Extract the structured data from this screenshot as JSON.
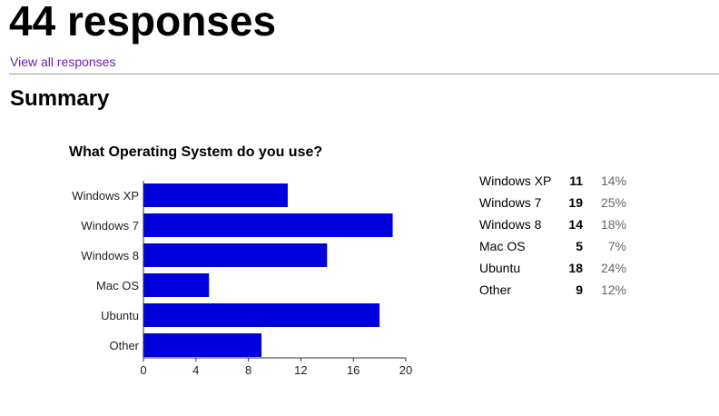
{
  "header": {
    "responses_title": "44 responses",
    "view_all_link": "View all responses",
    "summary_title": "Summary"
  },
  "question": {
    "title": "What Operating System do you use?"
  },
  "colors": {
    "bar": "#0000dd",
    "link": "#6a1fb4"
  },
  "chart_data": {
    "type": "bar",
    "orientation": "horizontal",
    "title": "What Operating System do you use?",
    "categories": [
      "Windows XP",
      "Windows 7",
      "Windows 8",
      "Mac OS",
      "Ubuntu",
      "Other"
    ],
    "values": [
      11,
      19,
      14,
      5,
      18,
      9
    ],
    "xlim": [
      0,
      20
    ],
    "xticks": [
      "0",
      "4",
      "8",
      "12",
      "16",
      "20"
    ],
    "grid": false,
    "legend": "none"
  },
  "results_table": [
    {
      "label": "Windows XP",
      "count": "11",
      "percent": "14%"
    },
    {
      "label": "Windows 7",
      "count": "19",
      "percent": "25%"
    },
    {
      "label": "Windows 8",
      "count": "14",
      "percent": "18%"
    },
    {
      "label": "Mac OS",
      "count": "5",
      "percent": "7%"
    },
    {
      "label": "Ubuntu",
      "count": "18",
      "percent": "24%"
    },
    {
      "label": "Other",
      "count": "9",
      "percent": "12%"
    }
  ]
}
